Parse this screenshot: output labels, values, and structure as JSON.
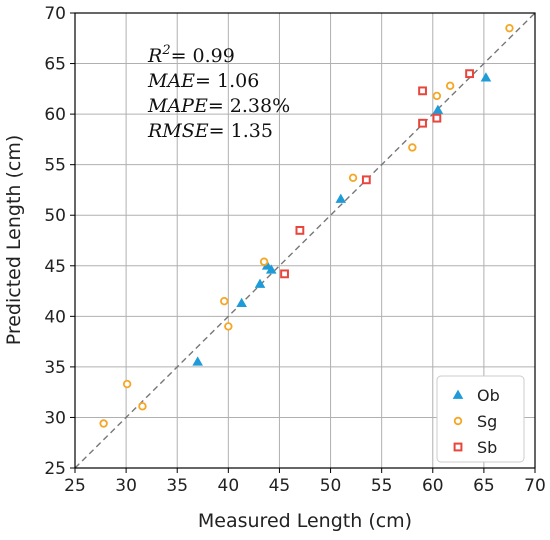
{
  "chart_data": {
    "type": "scatter",
    "xlabel": "Measured Length (cm)",
    "ylabel": "Predicted Length (cm)",
    "xlim": [
      25,
      70
    ],
    "ylim": [
      25,
      70
    ],
    "xticks": [
      "25",
      "30",
      "35",
      "40",
      "45",
      "50",
      "55",
      "60",
      "65",
      "70"
    ],
    "yticks": [
      "25",
      "30",
      "35",
      "40",
      "45",
      "50",
      "55",
      "60",
      "65",
      "70"
    ],
    "grid": true,
    "reference_line": "y = x (dashed)",
    "legend_position": "bottom-right",
    "annotations": [
      {
        "base": "R",
        "sup": "2",
        "rest": "= 0.99"
      },
      {
        "base": "MAE",
        "sup": "",
        "rest": "= 1.06"
      },
      {
        "base": "MAPE",
        "sup": "",
        "rest": "= 2.38%"
      },
      {
        "base": "RMSE",
        "sup": "",
        "rest": "= 1.35"
      }
    ],
    "series": [
      {
        "name": "Ob",
        "marker": "triangle",
        "color": "#1f9bd8",
        "points": [
          [
            37.0,
            35.5
          ],
          [
            41.3,
            41.3
          ],
          [
            43.1,
            43.2
          ],
          [
            43.8,
            45.0
          ],
          [
            44.2,
            44.6
          ],
          [
            51.0,
            51.6
          ],
          [
            60.5,
            60.4
          ],
          [
            65.2,
            63.6
          ]
        ]
      },
      {
        "name": "Sg",
        "marker": "circle",
        "color": "#f5a623",
        "points": [
          [
            27.8,
            29.4
          ],
          [
            30.1,
            33.3
          ],
          [
            31.6,
            31.1
          ],
          [
            39.6,
            41.5
          ],
          [
            40.0,
            39.0
          ],
          [
            43.5,
            45.4
          ],
          [
            52.2,
            53.7
          ],
          [
            58.0,
            56.7
          ],
          [
            60.4,
            61.8
          ],
          [
            61.7,
            62.8
          ],
          [
            67.5,
            68.5
          ]
        ]
      },
      {
        "name": "Sb",
        "marker": "square",
        "color": "#e8453c",
        "points": [
          [
            45.5,
            44.2
          ],
          [
            47.0,
            48.5
          ],
          [
            53.5,
            53.5
          ],
          [
            59.0,
            59.1
          ],
          [
            59.0,
            62.3
          ],
          [
            60.4,
            59.6
          ],
          [
            63.6,
            64.0
          ]
        ]
      }
    ]
  }
}
